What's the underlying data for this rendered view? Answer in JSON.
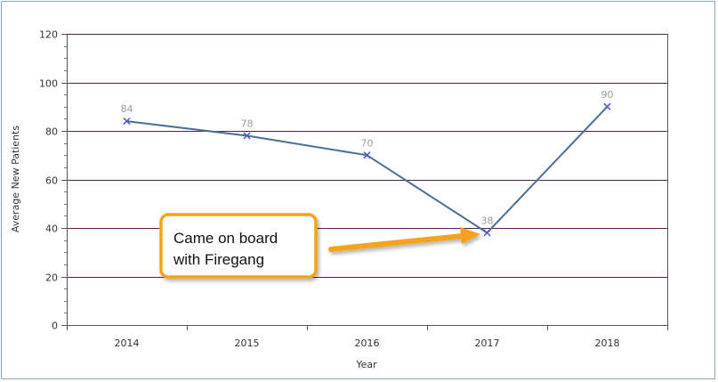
{
  "chart_data": {
    "type": "line",
    "x": [
      "2014",
      "2015",
      "2016",
      "2017",
      "2018"
    ],
    "series": [
      {
        "values": [
          84,
          78,
          70,
          38,
          90
        ]
      }
    ],
    "data_labels": [
      "84",
      "78",
      "70",
      "38",
      "90"
    ],
    "xlabel": "Year",
    "ylabel": "Average New Patients",
    "ylim": [
      0,
      120
    ],
    "yticks": [
      "0",
      "20",
      "40",
      "60",
      "80",
      "100",
      "120"
    ],
    "grid": true,
    "legend": "none",
    "annotation": {
      "line1": "Came on board",
      "line2": "with Firegang",
      "points_to": "2017"
    }
  },
  "colors": {
    "line": "#4a6e96",
    "marker": "#5060d0",
    "grid": "#5a1f5a",
    "callout_border": "#f5a31a",
    "arrow": "#f5a31a",
    "frame": "#7fa7cf"
  }
}
